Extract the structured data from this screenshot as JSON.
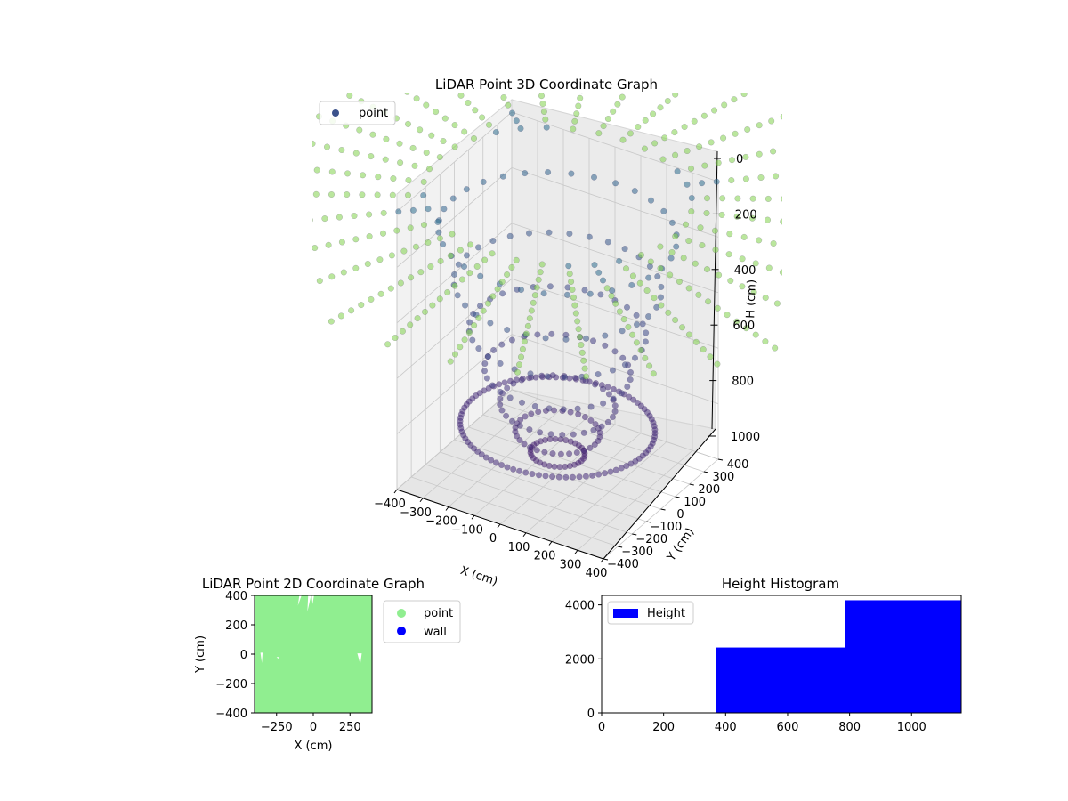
{
  "chart_data": [
    {
      "id": "lidar-3d",
      "type": "scatter",
      "title": "LiDAR Point 3D Coordinate Graph",
      "xlabel": "X (cm)",
      "ylabel": "Y (cm)",
      "zlabel": "H (cm)",
      "x_ticks": [
        -400,
        -300,
        -200,
        -100,
        0,
        100,
        200,
        300,
        400
      ],
      "y_ticks": [
        -400,
        -300,
        -200,
        -100,
        0,
        100,
        200,
        300,
        400
      ],
      "z_ticks": [
        0,
        200,
        400,
        600,
        800,
        1000
      ],
      "z_tick_labels": [
        "0",
        "200",
        "400",
        "600",
        "800",
        "1000"
      ],
      "xlim": [
        -400,
        400
      ],
      "ylim": [
        -400,
        400
      ],
      "zlim": [
        0,
        1000
      ],
      "z_axis_inverted": true,
      "grid": true,
      "legend": {
        "placement": "upper-left",
        "entries": [
          {
            "label": "point",
            "color": "#3b528b"
          }
        ]
      },
      "colormap": "viridis (by height)",
      "surface": {
        "rays": 32,
        "rings": 22,
        "model": "bowl-shaped scan: height grows with radial distance"
      }
    },
    {
      "id": "lidar-2d",
      "type": "scatter",
      "title": "LiDAR Point 2D Coordinate Graph",
      "xlabel": "X (cm)",
      "ylabel": "Y (cm)",
      "xlim": [
        -400,
        400
      ],
      "ylim": [
        -400,
        400
      ],
      "x_ticks": [
        -250,
        0,
        250
      ],
      "y_ticks": [
        -400,
        -200,
        0,
        200,
        400
      ],
      "legend": {
        "placement": "outside-right",
        "entries": [
          {
            "label": "point",
            "color": "#90ee90"
          },
          {
            "label": "wall",
            "color": "#0000ff"
          }
        ]
      },
      "description": "dense point coverage over whole extent, small gaps near top and sides"
    },
    {
      "id": "height-hist",
      "type": "bar",
      "title": "Height Histogram",
      "xlabel": "",
      "ylabel": "",
      "bins": [
        {
          "start": 0,
          "end": 370,
          "count": 0
        },
        {
          "start": 370,
          "end": 785,
          "count": 2420
        },
        {
          "start": 785,
          "end": 1160,
          "count": 4170
        }
      ],
      "xlim": [
        0,
        1160
      ],
      "ylim": [
        0,
        4350
      ],
      "x_ticks": [
        0,
        200,
        400,
        600,
        800,
        1000
      ],
      "y_ticks": [
        0,
        2000,
        4000
      ],
      "bar_color": "#0000ff",
      "legend": {
        "placement": "upper-left",
        "entries": [
          {
            "label": "Height",
            "color": "#0000ff"
          }
        ]
      }
    }
  ]
}
